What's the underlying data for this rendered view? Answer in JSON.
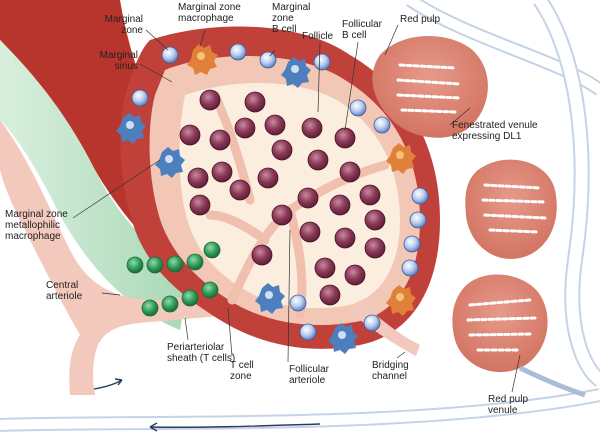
{
  "labels": {
    "marginal_zone": "Marginal\nzone",
    "marginal_sinus": "Marginal\nsinus",
    "mz_macrophage": "Marginal zone\nmacrophage",
    "mz_b_cell": "Marginal\nzone\nB cell",
    "follicle": "Follicle",
    "follicular_b_cell": "Follicular\nB cell",
    "red_pulp": "Red pulp",
    "fenestrated_venule": "Fenestrated venule\nexpressing DL1",
    "mz_metallophilic": "Marginal zone\nmetallophilic\nmacrophage",
    "central_arteriole": "Central\narteriole",
    "pals": "Periarteriolar\nsheath (T cells)",
    "t_cell_zone": "T cell\nzone",
    "follicular_arteriole": "Follicular\narteriole",
    "bridging_channel": "Bridging\nchannel",
    "red_pulp_venule": "Red pulp\nvenule"
  },
  "colors": {
    "red_pulp_tissue": "#b8352e",
    "red_pulp_light": "#e0897b",
    "follicle_fill": "#fbeede",
    "marginal_sinus": "#f2c7b6",
    "vessel_outline": "#a9bdd8",
    "t_cell": "#2f9a57",
    "b_cell": "#7a2e4a",
    "mz_b_cell": "#6f8fc9",
    "macrophage_orange": "#e0813a",
    "macrophage_blue": "#4d7fbf"
  }
}
